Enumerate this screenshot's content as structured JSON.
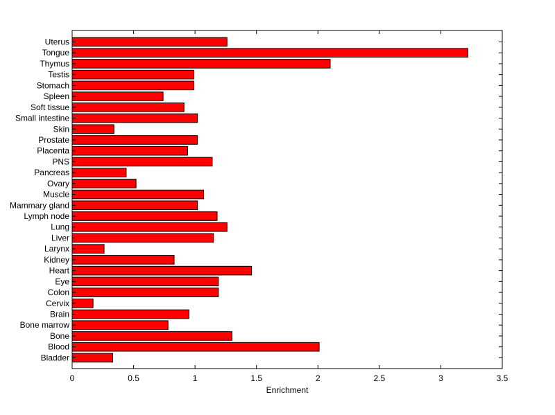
{
  "chart_data": {
    "type": "bar",
    "orientation": "horizontal",
    "title": "",
    "xlabel": "Enrichment",
    "ylabel": "",
    "xlim": [
      0,
      3.5
    ],
    "xticks": [
      0,
      0.5,
      1,
      1.5,
      2,
      2.5,
      3,
      3.5
    ],
    "xtick_labels": [
      "0",
      "0.5",
      "1",
      "1.5",
      "2",
      "2.5",
      "3",
      "3.5"
    ],
    "grid": false,
    "legend": "none",
    "bar_color": "#ff0000",
    "edge_color": "#000000",
    "categories": [
      "Uterus",
      "Tongue",
      "Thymus",
      "Testis",
      "Stomach",
      "Spleen",
      "Soft tissue",
      "Small intestine",
      "Skin",
      "Prostate",
      "Placenta",
      "PNS",
      "Pancreas",
      "Ovary",
      "Muscle",
      "Mammary gland",
      "Lymph node",
      "Lung",
      "Liver",
      "Larynx",
      "Kidney",
      "Heart",
      "Eye",
      "Colon",
      "Cervix",
      "Brain",
      "Bone marrow",
      "Bone",
      "Blood",
      "Bladder"
    ],
    "values": [
      1.26,
      3.22,
      2.1,
      0.99,
      0.99,
      0.74,
      0.91,
      1.02,
      0.34,
      1.02,
      0.94,
      1.14,
      0.44,
      0.52,
      1.07,
      1.02,
      1.18,
      1.26,
      1.15,
      0.26,
      0.83,
      1.46,
      1.19,
      1.19,
      0.17,
      0.95,
      0.78,
      1.3,
      2.01,
      0.33
    ]
  }
}
